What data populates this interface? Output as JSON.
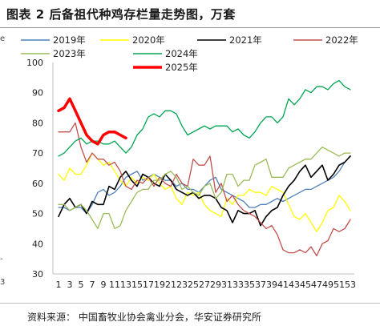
{
  "header": {
    "title": "图表 2 后备祖代种鸡存栏量走势图，万套"
  },
  "footer": {
    "source": "资料来源：  中国畜牧业协会禽业分会，华安证券研究所"
  },
  "edge_marks": [
    "e",
    "-",
    "3"
  ],
  "colors": {
    "2019": "#4f81bd",
    "2020": "#ffff00",
    "2021": "#000000",
    "2022": "#c0504d",
    "2023": "#9bbb59",
    "2024": "#00a550",
    "2025": "#ff0000"
  },
  "chart_data": {
    "type": "line",
    "title": "后备祖代种鸡存栏量走势图，万套",
    "xlabel": "",
    "ylabel": "",
    "ylim": [
      30,
      100
    ],
    "xlim": [
      1,
      53
    ],
    "y_ticks": [
      30,
      40,
      50,
      60,
      70,
      80,
      90,
      100
    ],
    "x_tick_labels": [
      "1",
      "3",
      "5",
      "7",
      "9",
      "11",
      "13",
      "15",
      "17",
      "19",
      "21",
      "23",
      "25",
      "27",
      "29",
      "31",
      "33",
      "35",
      "37",
      "39",
      "41",
      "43",
      "45",
      "47",
      "49",
      "51",
      "53"
    ],
    "grid": false,
    "legend_position": "top",
    "series": [
      {
        "name": "2019年",
        "color": "#4f81bd",
        "width": 1.3,
        "values": [
          52,
          52,
          51,
          52,
          52,
          50,
          53,
          57,
          58,
          56,
          57,
          59,
          62,
          63,
          64,
          61,
          62,
          63,
          62,
          61,
          61,
          59,
          60,
          58,
          58,
          57,
          59,
          61,
          62,
          58,
          57,
          56,
          55,
          54,
          52,
          52,
          53,
          53,
          54,
          55,
          54,
          55,
          56,
          57,
          58,
          58,
          59,
          60,
          61,
          62,
          64,
          67,
          69
        ]
      },
      {
        "name": "2020年",
        "color": "#ffff00",
        "width": 1.3,
        "values": [
          63,
          61,
          65,
          63,
          63,
          66,
          70,
          68,
          66,
          67,
          64,
          61,
          59,
          62,
          60,
          62,
          61,
          63,
          60,
          58,
          59,
          55,
          53,
          57,
          56,
          57,
          53,
          51,
          50,
          49,
          55,
          53,
          56,
          56,
          58,
          57,
          57,
          56,
          59,
          58,
          57,
          53,
          49,
          48,
          50,
          47,
          44,
          47,
          51,
          52,
          56,
          54,
          51
        ]
      },
      {
        "name": "2021年",
        "color": "#000000",
        "width": 1.6,
        "values": [
          49,
          53,
          55,
          52,
          53,
          50,
          54,
          53,
          53,
          59,
          58,
          62,
          64,
          61,
          59,
          63,
          62,
          60,
          59,
          63,
          61,
          58,
          57,
          56,
          57,
          55,
          56,
          56,
          55,
          52,
          51,
          47,
          51,
          50,
          50,
          51,
          46,
          49,
          51,
          52,
          56,
          59,
          61,
          64,
          66,
          62,
          64,
          66,
          61,
          63,
          66,
          67,
          69
        ]
      },
      {
        "name": "2022年",
        "color": "#c0504d",
        "width": 1.3,
        "values": [
          77,
          77,
          77,
          80,
          72,
          67,
          70,
          68,
          68,
          66,
          67,
          64,
          59,
          58,
          61,
          60,
          62,
          59,
          62,
          60,
          59,
          63,
          60,
          59,
          68,
          66,
          66,
          69,
          57,
          60,
          54,
          56,
          53,
          51,
          50,
          49,
          47,
          45,
          46,
          43,
          38,
          37,
          37,
          38,
          37,
          39,
          36,
          40,
          41,
          45,
          44,
          45,
          48
        ]
      },
      {
        "name": "2023年",
        "color": "#9bbb59",
        "width": 1.3,
        "values": [
          53,
          53,
          51,
          52,
          53,
          51,
          48,
          45,
          50,
          50,
          45,
          46,
          51,
          54,
          57,
          58,
          58,
          61,
          61,
          63,
          64,
          62,
          58,
          59,
          57,
          56,
          59,
          60,
          55,
          57,
          63,
          63,
          59,
          61,
          61,
          66,
          67,
          68,
          62,
          62,
          62,
          65,
          66,
          67,
          68,
          68,
          70,
          72,
          71,
          70,
          69,
          70,
          70
        ]
      },
      {
        "name": "2024年",
        "color": "#00a550",
        "width": 1.3,
        "values": [
          69,
          70,
          72,
          74,
          75,
          73,
          74,
          74,
          73,
          73,
          74,
          72,
          70,
          72,
          76,
          78,
          82,
          83,
          82,
          84,
          84,
          83,
          79,
          76,
          77,
          78,
          79,
          78,
          79,
          79,
          79,
          77,
          78,
          76,
          75,
          77,
          80,
          82,
          82,
          80,
          82,
          88,
          86,
          88,
          91,
          90,
          92,
          92,
          91,
          93,
          94,
          92,
          91
        ]
      },
      {
        "name": "2025年",
        "color": "#ff0000",
        "width": 3.5,
        "values": [
          84,
          85,
          88,
          84,
          80,
          76,
          74,
          73,
          76,
          77,
          77,
          76,
          75
        ]
      }
    ]
  }
}
